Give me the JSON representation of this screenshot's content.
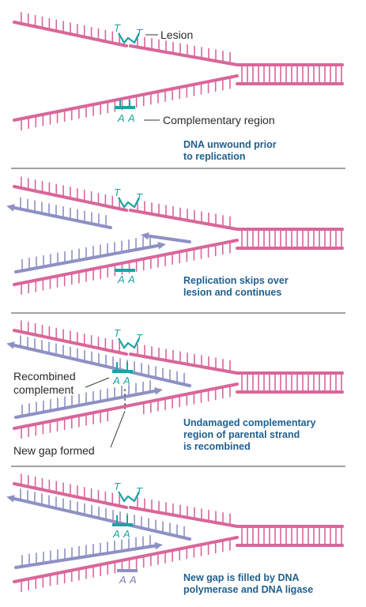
{
  "panels": [
    {
      "lesion_bases": [
        "T",
        "T"
      ],
      "lesion_label": "Lesion",
      "complement_bases": [
        "A",
        "A"
      ],
      "complement_label": "Complementary region",
      "caption": [
        "DNA unwound prior",
        "to replication"
      ]
    },
    {
      "lesion_bases": [
        "T",
        "T"
      ],
      "complement_bases": [
        "A",
        "A"
      ],
      "caption": [
        "Replication skips over",
        "lesion and continues"
      ]
    },
    {
      "lesion_bases": [
        "T",
        "T"
      ],
      "complement_bases": [
        "A",
        "A"
      ],
      "recombined_label": [
        "Recombined",
        "complement"
      ],
      "gap_label": "New gap formed",
      "caption": [
        "Undamaged complementary",
        "region of parental strand",
        "is recombined"
      ]
    },
    {
      "lesion_bases": [
        "T",
        "T"
      ],
      "complement_bases": [
        "A",
        "A"
      ],
      "new_bases": [
        "A",
        "A"
      ],
      "caption": [
        "New gap is filled by DNA",
        "polymerase and DNA ligase"
      ]
    }
  ],
  "colors": {
    "parental_strand": "#d9669a",
    "new_strand": "#8e90c4",
    "lesion": "#1aa3a3",
    "caption": "#1f5f8f",
    "divider": "#444444"
  }
}
